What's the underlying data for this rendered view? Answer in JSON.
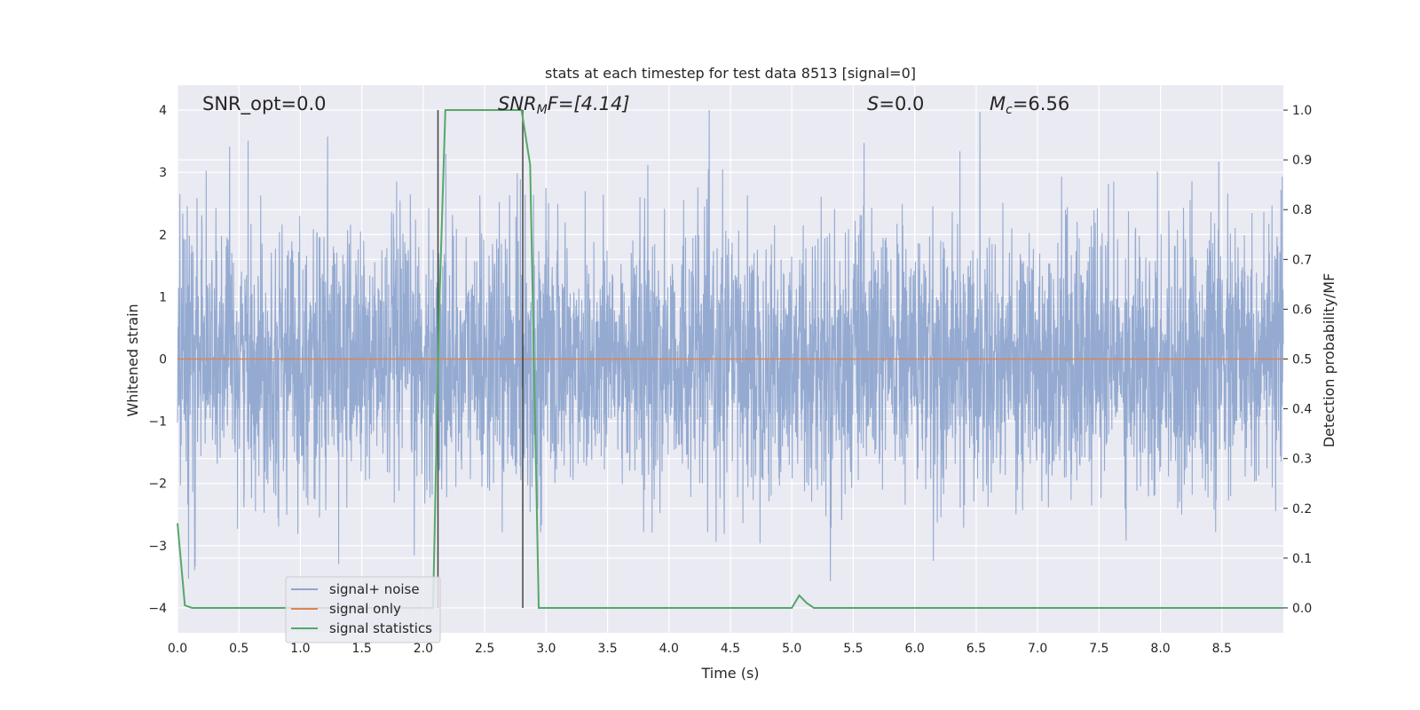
{
  "chart_data": {
    "type": "line",
    "title": "stats at each timestep for test data 8513 [signal=0]",
    "xlabel": "Time (s)",
    "ylabel": "Whitened strain",
    "y2label": "Detection probability/MF",
    "xlim": [
      0.0,
      9.0
    ],
    "ylim": [
      -4.4,
      4.4
    ],
    "y2lim": [
      -0.05,
      1.05
    ],
    "x_ticks": [
      "0.0",
      "0.5",
      "1.0",
      "1.5",
      "2.0",
      "2.5",
      "3.0",
      "3.5",
      "4.0",
      "4.5",
      "5.0",
      "5.5",
      "6.0",
      "6.5",
      "7.0",
      "7.5",
      "8.0",
      "8.5"
    ],
    "y_ticks": [
      "4",
      "3",
      "2",
      "1",
      "0",
      "−1",
      "−2",
      "−3",
      "−4"
    ],
    "y2_ticks": [
      "1.0",
      "0.9",
      "0.8",
      "0.7",
      "0.6",
      "0.5",
      "0.4",
      "0.3",
      "0.2",
      "0.1",
      "0.0"
    ],
    "grid": true,
    "legend_position": "lower-left",
    "annotations": {
      "snr_opt": "SNR_opt=0.0",
      "snr_mf_label": "SNR",
      "snr_mf_sub": "M",
      "snr_mf_value": "F=[4.14]",
      "s_label": "S",
      "s_value": "=0.0",
      "mc_label": "M",
      "mc_sub": "c",
      "mc_value": "=6.56"
    },
    "vertical_lines_x": [
      2.12,
      2.81
    ],
    "series": [
      {
        "name": "signal+ noise",
        "color": "#8fa6cf",
        "axis": "left",
        "description_values": "dense whitened noise, amplitude roughly within ±3.5",
        "max": 4.0,
        "min": -4.0
      },
      {
        "name": "signal only",
        "color": "#dd8452",
        "axis": "left",
        "x": [
          0.0,
          9.0
        ],
        "values": [
          0.0,
          0.0
        ]
      },
      {
        "name": "signal statistics",
        "color": "#55a868",
        "axis": "right",
        "x": [
          0.0,
          0.06,
          0.12,
          2.08,
          2.13,
          2.18,
          2.8,
          2.87,
          2.94,
          5.0,
          5.06,
          5.12,
          5.18,
          9.0
        ],
        "values": [
          0.17,
          0.005,
          0.0,
          0.0,
          0.6,
          1.0,
          1.0,
          0.89,
          0.0,
          0.0,
          0.025,
          0.01,
          0.0,
          0.0
        ]
      }
    ]
  },
  "colors": {
    "plot_bg": "#eaeaf2",
    "grid": "#ffffff",
    "vline": "#444444"
  }
}
